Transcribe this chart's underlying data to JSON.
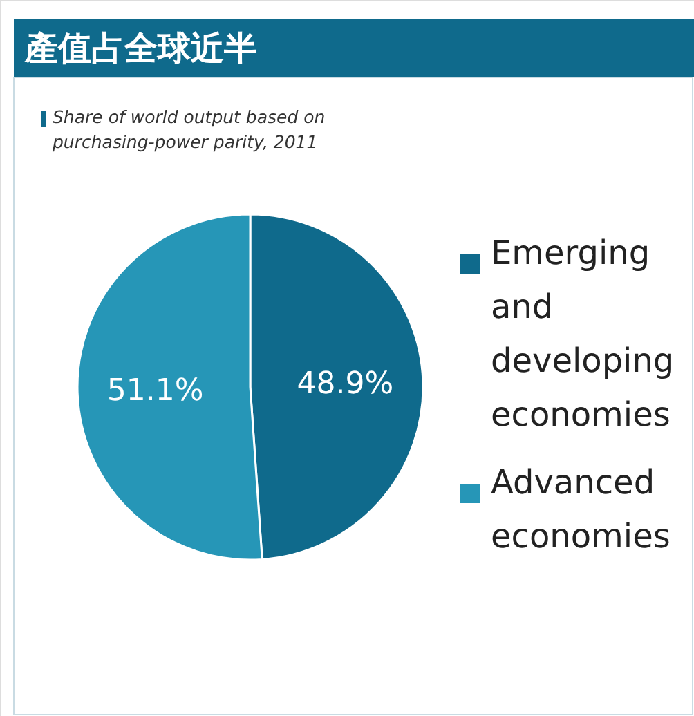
{
  "chart_data": {
    "type": "pie",
    "title": "產值占全球近半",
    "subtitle": "Share of world output based on purchasing-power parity, 2011",
    "categories": [
      "Emerging and developing economies",
      "Advanced economies"
    ],
    "values": [
      48.9,
      51.1
    ],
    "colors": [
      "#0f6a8c",
      "#2696b7"
    ],
    "value_labels": [
      "48.9%",
      "51.1%"
    ],
    "legend": "right"
  }
}
